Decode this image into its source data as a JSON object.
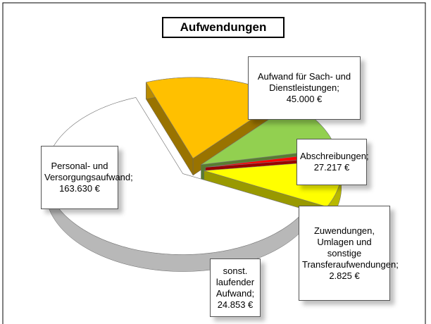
{
  "chart_data": {
    "type": "pie",
    "title": "Aufwendungen",
    "categories": [
      "Aufwand für Sach- und Dienstleistungen;",
      "Abschreibungen;",
      "Zuwendungen, Umlagen und sonstige Transferaufwendungen;",
      "sonst. laufender Aufwand;",
      "Personal- und Versorgungsaufwand;"
    ],
    "values": [
      45000,
      27217,
      2825,
      24853,
      163630
    ],
    "value_labels": [
      "45.000 €",
      "27.217 €",
      "2.825 €",
      "24.853 €",
      "163.630 €"
    ],
    "colors": [
      "#ffc000",
      "#92d050",
      "#ff0000",
      "#ffff00",
      "#ffffff"
    ]
  }
}
